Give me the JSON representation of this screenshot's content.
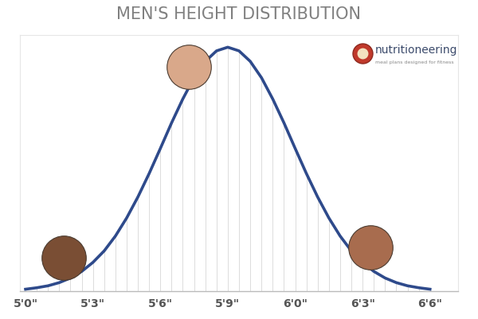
{
  "chart_data": {
    "type": "line",
    "title": "MEN'S HEIGHT DISTRIBUTION",
    "x": [
      60,
      60.5,
      61,
      61.5,
      62,
      62.5,
      63,
      63.5,
      64,
      64.5,
      65,
      65.5,
      66,
      66.5,
      67,
      67.5,
      68,
      68.5,
      69,
      69.5,
      70,
      70.5,
      71,
      71.5,
      72,
      72.5,
      73,
      73.5,
      74,
      74.5,
      75,
      75.5,
      76,
      76.5,
      77,
      77.5,
      78
    ],
    "values": [
      0.8,
      1.4,
      2.2,
      3.5,
      5.4,
      8.1,
      11.8,
      16.5,
      22.6,
      30,
      38.6,
      48.2,
      58.5,
      69,
      78.8,
      87.5,
      94.2,
      98.5,
      100,
      98.5,
      94.2,
      87.5,
      78.8,
      69,
      58.5,
      48.2,
      38.6,
      30,
      22.6,
      16.5,
      11.8,
      8.1,
      5.4,
      3.5,
      2.2,
      1.4,
      0.8
    ],
    "color": "#2e4a8b",
    "line_style": "solid",
    "xlim": [
      59.75,
      79.25
    ],
    "xticks": [
      {
        "value": 60,
        "label": "5'0\""
      },
      {
        "value": 63,
        "label": "5'3\""
      },
      {
        "value": 66,
        "label": "5'6\""
      },
      {
        "value": 69,
        "label": "5'9\""
      },
      {
        "value": 72,
        "label": "6'0\""
      },
      {
        "value": 75,
        "label": "6'3\""
      },
      {
        "value": 78,
        "label": "6'6\""
      }
    ],
    "ylim": [
      0,
      105
    ],
    "tick_labels": "x",
    "annotations": [
      "nutritioneering",
      "meal plans designed for fitness"
    ]
  }
}
